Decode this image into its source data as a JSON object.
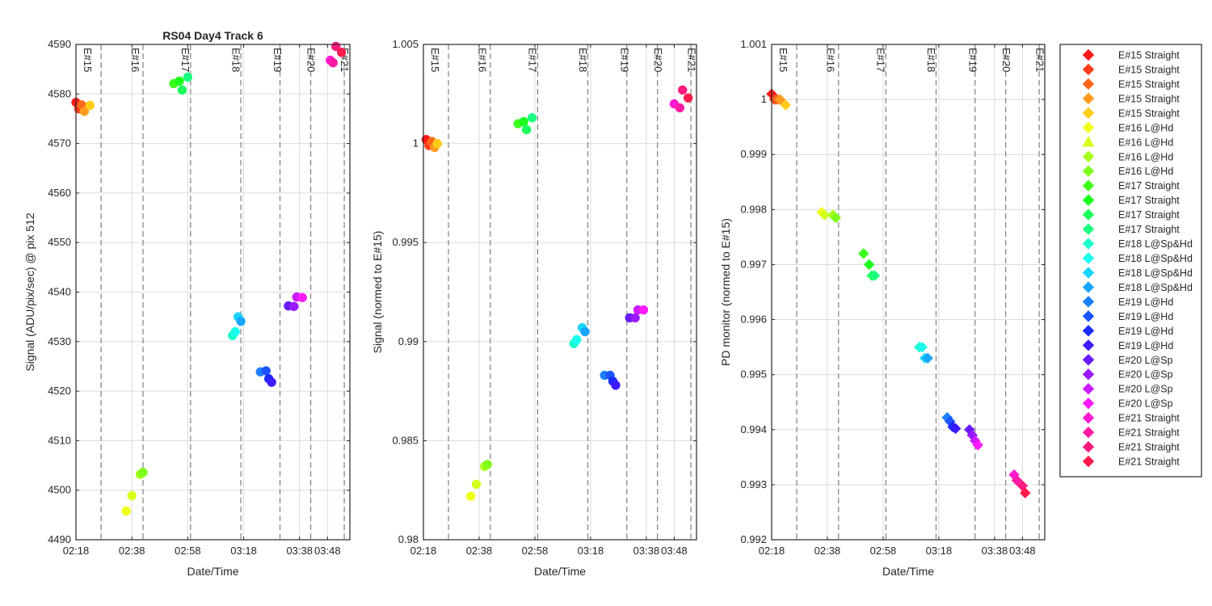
{
  "chart_data": [
    {
      "type": "scatter",
      "title": "RS04 Day4 Track 6",
      "xlabel": "Date/Time",
      "ylabel": "Signal (ADU/pix/sec) @ pix 512",
      "ylim": [
        4490,
        4590
      ],
      "yticks": [
        "4490",
        "4500",
        "4510",
        "4520",
        "4530",
        "4540",
        "4550",
        "4560",
        "4570",
        "4580",
        "4590"
      ],
      "xlim": [
        "02:18",
        "03:56"
      ],
      "xticks": [
        "02:18",
        "02:38",
        "02:58",
        "03:18",
        "03:38",
        "03:48"
      ],
      "marker": "circle",
      "grid": true,
      "points": [
        {
          "x": "02:18",
          "y": 4578.3,
          "color": "#ff1a1a"
        },
        {
          "x": "02:19",
          "y": 4577.0,
          "color": "#ff3d1a"
        },
        {
          "x": "02:20",
          "y": 4577.8,
          "color": "#ff661a"
        },
        {
          "x": "02:21",
          "y": 4576.5,
          "color": "#ff9a1a"
        },
        {
          "x": "02:23",
          "y": 4577.7,
          "color": "#ffcc1a"
        },
        {
          "x": "02:36",
          "y": 4495.8,
          "color": "#f0ff1a"
        },
        {
          "x": "02:38",
          "y": 4498.9,
          "color": "#d5ff1a"
        },
        {
          "x": "02:41",
          "y": 4503.2,
          "color": "#a6ff1a"
        },
        {
          "x": "02:42",
          "y": 4503.6,
          "color": "#80ff1a"
        },
        {
          "x": "02:53",
          "y": 4582.1,
          "color": "#3dff1a"
        },
        {
          "x": "02:55",
          "y": 4582.6,
          "color": "#1aff1a"
        },
        {
          "x": "02:56",
          "y": 4580.8,
          "color": "#1aff5a"
        },
        {
          "x": "02:58",
          "y": 4583.4,
          "color": "#1aff80"
        },
        {
          "x": "03:14",
          "y": 4531.2,
          "color": "#1affcc"
        },
        {
          "x": "03:15",
          "y": 4532.0,
          "color": "#1affee"
        },
        {
          "x": "03:16",
          "y": 4535.0,
          "color": "#1ad5ff"
        },
        {
          "x": "03:17",
          "y": 4534.1,
          "color": "#1aa6ff"
        },
        {
          "x": "03:24",
          "y": 4523.9,
          "color": "#1a80ff"
        },
        {
          "x": "03:26",
          "y": 4524.1,
          "color": "#1a55ff"
        },
        {
          "x": "03:27",
          "y": 4522.5,
          "color": "#1a2bff"
        },
        {
          "x": "03:28",
          "y": 4521.8,
          "color": "#3d1aff"
        },
        {
          "x": "03:34",
          "y": 4537.2,
          "color": "#661aff"
        },
        {
          "x": "03:36",
          "y": 4537.1,
          "color": "#991aff"
        },
        {
          "x": "03:37",
          "y": 4539.0,
          "color": "#cc1aff"
        },
        {
          "x": "03:39",
          "y": 4538.9,
          "color": "#ff1aff"
        },
        {
          "x": "03:49",
          "y": 4586.8,
          "color": "#ff1ad2"
        },
        {
          "x": "03:50",
          "y": 4586.3,
          "color": "#ff1aa6"
        },
        {
          "x": "03:51",
          "y": 4589.6,
          "color": "#ff1a80"
        },
        {
          "x": "03:53",
          "y": 4588.4,
          "color": "#ff1a4d"
        }
      ]
    },
    {
      "type": "scatter",
      "title": "",
      "xlabel": "Date/Time",
      "ylabel": "Signal (normed to E#15)",
      "ylim": [
        0.98,
        1.005
      ],
      "yticks": [
        "0.98",
        "0.985",
        "0.99",
        "0.995",
        "1",
        "1.005"
      ],
      "xlim": [
        "02:18",
        "03:56"
      ],
      "xticks": [
        "02:18",
        "02:38",
        "02:58",
        "03:18",
        "03:38",
        "03:48"
      ],
      "marker": "circle",
      "grid": true,
      "points": [
        {
          "x": "02:19",
          "y": 1.0002,
          "color": "#ff1a1a"
        },
        {
          "x": "02:20",
          "y": 0.9999,
          "color": "#ff3d1a"
        },
        {
          "x": "02:21",
          "y": 1.0001,
          "color": "#ff661a"
        },
        {
          "x": "02:22",
          "y": 0.9998,
          "color": "#ff9a1a"
        },
        {
          "x": "02:23",
          "y": 1.0,
          "color": "#ffcc1a"
        },
        {
          "x": "02:35",
          "y": 0.9822,
          "color": "#f0ff1a"
        },
        {
          "x": "02:37",
          "y": 0.9828,
          "color": "#d5ff1a"
        },
        {
          "x": "02:40",
          "y": 0.9837,
          "color": "#a6ff1a"
        },
        {
          "x": "02:41",
          "y": 0.9838,
          "color": "#80ff1a"
        },
        {
          "x": "02:52",
          "y": 1.001,
          "color": "#3dff1a"
        },
        {
          "x": "02:54",
          "y": 1.0011,
          "color": "#1aff1a"
        },
        {
          "x": "02:55",
          "y": 1.0007,
          "color": "#1aff5a"
        },
        {
          "x": "02:57",
          "y": 1.0013,
          "color": "#1aff80"
        },
        {
          "x": "03:12",
          "y": 0.9899,
          "color": "#1affcc"
        },
        {
          "x": "03:13",
          "y": 0.9901,
          "color": "#1affee"
        },
        {
          "x": "03:15",
          "y": 0.9907,
          "color": "#1ad5ff"
        },
        {
          "x": "03:16",
          "y": 0.9905,
          "color": "#1aa6ff"
        },
        {
          "x": "03:23",
          "y": 0.9883,
          "color": "#1a80ff"
        },
        {
          "x": "03:25",
          "y": 0.9883,
          "color": "#1a55ff"
        },
        {
          "x": "03:26",
          "y": 0.988,
          "color": "#1a2bff"
        },
        {
          "x": "03:27",
          "y": 0.9878,
          "color": "#3d1aff"
        },
        {
          "x": "03:32",
          "y": 0.9912,
          "color": "#661aff"
        },
        {
          "x": "03:34",
          "y": 0.9912,
          "color": "#991aff"
        },
        {
          "x": "03:35",
          "y": 0.9916,
          "color": "#cc1aff"
        },
        {
          "x": "03:37",
          "y": 0.9916,
          "color": "#ff1aff"
        },
        {
          "x": "03:48",
          "y": 1.002,
          "color": "#ff1ad2"
        },
        {
          "x": "03:50",
          "y": 1.0018,
          "color": "#ff1aa6"
        },
        {
          "x": "03:51",
          "y": 1.0027,
          "color": "#ff1a80"
        },
        {
          "x": "03:53",
          "y": 1.0023,
          "color": "#ff1a4d"
        }
      ]
    },
    {
      "type": "scatter",
      "title": "",
      "xlabel": "Date/Time",
      "ylabel": "PD monitor (normed to E#15)",
      "ylim": [
        0.992,
        1.001
      ],
      "yticks": [
        "0.992",
        "0.993",
        "0.994",
        "0.995",
        "0.996",
        "0.997",
        "0.998",
        "0.999",
        "1",
        "1.001"
      ],
      "xlim": [
        "02:18",
        "03:56"
      ],
      "xticks": [
        "02:18",
        "02:38",
        "02:58",
        "03:18",
        "03:38",
        "03:48"
      ],
      "marker": "diamond",
      "grid": true,
      "points": [
        {
          "x": "02:18",
          "y": 1.0001,
          "color": "#ff1a1a"
        },
        {
          "x": "02:19",
          "y": 1.0,
          "color": "#ff3d1a"
        },
        {
          "x": "02:20",
          "y": 1.0,
          "color": "#ff661a"
        },
        {
          "x": "02:21",
          "y": 1.0,
          "color": "#ff9a1a"
        },
        {
          "x": "02:23",
          "y": 0.9999,
          "color": "#ffcc1a"
        },
        {
          "x": "02:36",
          "y": 0.99795,
          "color": "#f0ff1a"
        },
        {
          "x": "02:37",
          "y": 0.9979,
          "color": "#d5ff1a"
        },
        {
          "x": "02:40",
          "y": 0.9979,
          "color": "#a6ff1a"
        },
        {
          "x": "02:41",
          "y": 0.99785,
          "color": "#80ff1a"
        },
        {
          "x": "02:51",
          "y": 0.9972,
          "color": "#3dff1a"
        },
        {
          "x": "02:53",
          "y": 0.997,
          "color": "#1aff1a"
        },
        {
          "x": "02:54",
          "y": 0.9968,
          "color": "#1aff5a"
        },
        {
          "x": "02:55",
          "y": 0.9968,
          "color": "#1aff80"
        },
        {
          "x": "03:11",
          "y": 0.9955,
          "color": "#1affcc"
        },
        {
          "x": "03:12",
          "y": 0.9955,
          "color": "#1affee"
        },
        {
          "x": "03:13",
          "y": 0.9953,
          "color": "#1ad5ff"
        },
        {
          "x": "03:14",
          "y": 0.9953,
          "color": "#1aa6ff"
        },
        {
          "x": "03:21",
          "y": 0.99422,
          "color": "#1a80ff"
        },
        {
          "x": "03:22",
          "y": 0.99415,
          "color": "#1a55ff"
        },
        {
          "x": "03:23",
          "y": 0.99405,
          "color": "#1a2bff"
        },
        {
          "x": "03:24",
          "y": 0.99402,
          "color": "#3d1aff"
        },
        {
          "x": "03:29",
          "y": 0.994,
          "color": "#661aff"
        },
        {
          "x": "03:30",
          "y": 0.9939,
          "color": "#991aff"
        },
        {
          "x": "03:31",
          "y": 0.9938,
          "color": "#cc1aff"
        },
        {
          "x": "03:32",
          "y": 0.99372,
          "color": "#ff1aff"
        },
        {
          "x": "03:45",
          "y": 0.99318,
          "color": "#ff1ad2"
        },
        {
          "x": "03:46",
          "y": 0.99308,
          "color": "#ff1aa6"
        },
        {
          "x": "03:48",
          "y": 0.99298,
          "color": "#ff1a80"
        },
        {
          "x": "03:49",
          "y": 0.99285,
          "color": "#ff1a4d"
        }
      ]
    }
  ],
  "event_markers": [
    {
      "label": "E#15",
      "x": "02:18"
    },
    {
      "label": "E#16",
      "x": "02:35"
    },
    {
      "label": "E#17",
      "x": "02:53"
    },
    {
      "label": "E#18",
      "x": "03:11"
    },
    {
      "label": "E#19",
      "x": "03:26"
    },
    {
      "label": "E#20",
      "x": "03:38"
    },
    {
      "label": "E#21",
      "x": "03:50"
    }
  ],
  "dashed_lines": [
    "02:27",
    "02:42",
    "02:59",
    "03:17",
    "03:31",
    "03:42",
    "03:54"
  ],
  "legend": {
    "position": "right",
    "entries": [
      {
        "label": "E#15 Straight",
        "marker": "diamond",
        "color": "#ff1a1a"
      },
      {
        "label": "E#15 Straight",
        "marker": "diamond",
        "color": "#ff3d1a"
      },
      {
        "label": "E#15 Straight",
        "marker": "diamond",
        "color": "#ff661a"
      },
      {
        "label": "E#15 Straight",
        "marker": "diamond",
        "color": "#ff9a1a"
      },
      {
        "label": "E#15 Straight",
        "marker": "diamond",
        "color": "#ffcc1a"
      },
      {
        "label": "E#16 L@Hd",
        "marker": "diamond",
        "color": "#f0ff1a"
      },
      {
        "label": "E#16 L@Hd",
        "marker": "triangle",
        "color": "#d5ff1a"
      },
      {
        "label": "E#16 L@Hd",
        "marker": "diamond",
        "color": "#a6ff1a"
      },
      {
        "label": "E#16 L@Hd",
        "marker": "diamond",
        "color": "#80ff1a"
      },
      {
        "label": "E#17 Straight",
        "marker": "diamond",
        "color": "#3dff1a"
      },
      {
        "label": "E#17 Straight",
        "marker": "diamond",
        "color": "#1aff1a"
      },
      {
        "label": "E#17 Straight",
        "marker": "diamond",
        "color": "#1aff5a"
      },
      {
        "label": "E#17 Straight",
        "marker": "diamond",
        "color": "#1aff80"
      },
      {
        "label": "E#18 L@Sp&Hd",
        "marker": "diamond",
        "color": "#1affcc"
      },
      {
        "label": "E#18 L@Sp&Hd",
        "marker": "diamond",
        "color": "#1affee"
      },
      {
        "label": "E#18 L@Sp&Hd",
        "marker": "diamond",
        "color": "#1ad5ff"
      },
      {
        "label": "E#18 L@Sp&Hd",
        "marker": "diamond",
        "color": "#1aa6ff"
      },
      {
        "label": "E#19 L@Hd",
        "marker": "diamond",
        "color": "#1a80ff"
      },
      {
        "label": "E#19 L@Hd",
        "marker": "diamond",
        "color": "#1a55ff"
      },
      {
        "label": "E#19 L@Hd",
        "marker": "diamond",
        "color": "#1a2bff"
      },
      {
        "label": "E#19 L@Hd",
        "marker": "diamond",
        "color": "#3d1aff"
      },
      {
        "label": "E#20 L@Sp",
        "marker": "diamond",
        "color": "#661aff"
      },
      {
        "label": "E#20 L@Sp",
        "marker": "diamond",
        "color": "#991aff"
      },
      {
        "label": "E#20 L@Sp",
        "marker": "diamond",
        "color": "#cc1aff"
      },
      {
        "label": "E#20 L@Sp",
        "marker": "diamond",
        "color": "#ff1aff"
      },
      {
        "label": "E#21 Straight",
        "marker": "diamond",
        "color": "#ff1ad2"
      },
      {
        "label": "E#21 Straight",
        "marker": "diamond",
        "color": "#ff1aa6"
      },
      {
        "label": "E#21 Straight",
        "marker": "diamond",
        "color": "#ff1a80"
      },
      {
        "label": "E#21 Straight",
        "marker": "diamond",
        "color": "#ff1a4d"
      }
    ]
  }
}
